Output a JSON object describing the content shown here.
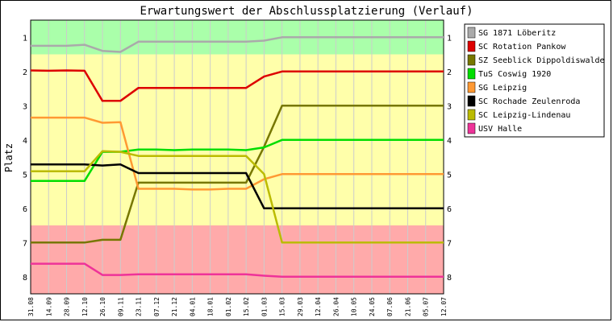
{
  "chart_data": {
    "type": "line",
    "title": "Erwartungswert der Abschlussplatzierung (Verlauf)",
    "xlabel": "",
    "ylabel": "Platz",
    "ylim": [
      0.5,
      8.5
    ],
    "y_reversed": true,
    "y_ticks": [
      "1",
      "2",
      "3",
      "4",
      "5",
      "6",
      "7",
      "8"
    ],
    "x": [
      "31.08",
      "14.09",
      "28.09",
      "12.10",
      "26.10",
      "09.11",
      "23.11",
      "07.12",
      "21.12",
      "04.01",
      "18.01",
      "01.02",
      "15.02",
      "01.03",
      "15.03",
      "29.03",
      "12.04",
      "26.04",
      "10.05",
      "24.05",
      "07.06",
      "21.06",
      "05.07",
      "12.07"
    ],
    "bands": [
      {
        "from": 0.5,
        "to": 1.5,
        "color": "#aaffaa"
      },
      {
        "from": 1.5,
        "to": 6.5,
        "color": "#ffffaa"
      },
      {
        "from": 6.5,
        "to": 8.5,
        "color": "#ffaaaa"
      }
    ],
    "grid": true,
    "legend_position": "right",
    "series": [
      {
        "name": "SG 1871 Löberitz",
        "color": "#aaaaaa",
        "values": [
          1.25,
          1.25,
          1.25,
          1.22,
          1.4,
          1.43,
          1.13,
          1.13,
          1.13,
          1.13,
          1.13,
          1.13,
          1.13,
          1.1,
          1.0,
          1.0,
          1.0,
          1.0,
          1.0,
          1.0,
          1.0,
          1.0,
          1.0,
          1.0
        ]
      },
      {
        "name": "SC Rotation Pankow",
        "color": "#dd0000",
        "values": [
          1.97,
          1.98,
          1.97,
          1.98,
          2.86,
          2.86,
          2.48,
          2.48,
          2.48,
          2.48,
          2.48,
          2.48,
          2.48,
          2.15,
          2.0,
          2.0,
          2.0,
          2.0,
          2.0,
          2.0,
          2.0,
          2.0,
          2.0,
          2.0
        ]
      },
      {
        "name": "SZ Seeblick Dippoldiswalde",
        "color": "#777700",
        "values": [
          7.0,
          7.0,
          7.0,
          7.0,
          6.92,
          6.92,
          5.25,
          5.25,
          5.25,
          5.25,
          5.25,
          5.25,
          5.25,
          4.2,
          3.0,
          3.0,
          3.0,
          3.0,
          3.0,
          3.0,
          3.0,
          3.0,
          3.0,
          3.0
        ]
      },
      {
        "name": "TuS Coswig 1920",
        "color": "#00dd00",
        "values": [
          5.2,
          5.2,
          5.2,
          5.2,
          4.35,
          4.35,
          4.28,
          4.28,
          4.3,
          4.28,
          4.28,
          4.28,
          4.3,
          4.22,
          4.0,
          4.0,
          4.0,
          4.0,
          4.0,
          4.0,
          4.0,
          4.0,
          4.0,
          4.0
        ]
      },
      {
        "name": "SG Leipzig",
        "color": "#ff9933",
        "values": [
          3.35,
          3.35,
          3.35,
          3.35,
          3.5,
          3.48,
          5.43,
          5.43,
          5.43,
          5.45,
          5.45,
          5.43,
          5.43,
          5.15,
          5.0,
          5.0,
          5.0,
          5.0,
          5.0,
          5.0,
          5.0,
          5.0,
          5.0,
          5.0
        ]
      },
      {
        "name": "SC Rochade Zeulenroda",
        "color": "#000000",
        "values": [
          4.72,
          4.72,
          4.72,
          4.72,
          4.75,
          4.72,
          4.97,
          4.97,
          4.97,
          4.97,
          4.97,
          4.97,
          4.97,
          6.0,
          6.0,
          6.0,
          6.0,
          6.0,
          6.0,
          6.0,
          6.0,
          6.0,
          6.0,
          6.0
        ]
      },
      {
        "name": "SC Leipzig-Lindenau",
        "color": "#bbbb00",
        "values": [
          4.92,
          4.92,
          4.92,
          4.92,
          4.33,
          4.35,
          4.47,
          4.47,
          4.47,
          4.47,
          4.47,
          4.47,
          4.47,
          5.0,
          7.0,
          7.0,
          7.0,
          7.0,
          7.0,
          7.0,
          7.0,
          7.0,
          7.0,
          7.0
        ]
      },
      {
        "name": "USV Halle",
        "color": "#ee3399",
        "values": [
          7.62,
          7.62,
          7.62,
          7.62,
          7.95,
          7.95,
          7.93,
          7.93,
          7.93,
          7.93,
          7.93,
          7.93,
          7.93,
          7.97,
          8.0,
          8.0,
          8.0,
          8.0,
          8.0,
          8.0,
          8.0,
          8.0,
          8.0,
          8.0
        ]
      }
    ]
  }
}
